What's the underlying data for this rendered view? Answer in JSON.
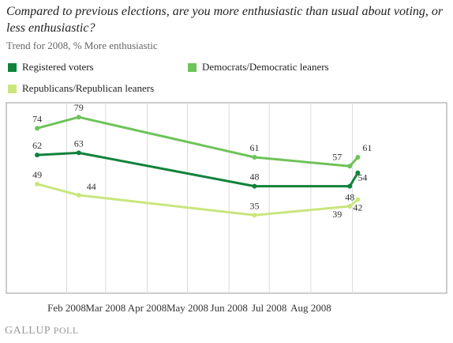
{
  "chart_data": {
    "type": "line",
    "title": "Compared to previous elections, are you more enthusiastic than usual about voting, or less enthusiastic?",
    "subtitle": "Trend for 2008, % More enthusiastic",
    "x_labels": [
      "Feb 2008",
      "Mar 2008",
      "Apr 2008",
      "May 2008",
      "Jun 2008",
      "Jul 2008",
      "Aug 2008"
    ],
    "x": [
      "2008-01-10",
      "2008-02-10",
      "2008-06-20",
      "2008-08-30",
      "2008-09-05"
    ],
    "ylim": [
      0,
      100
    ],
    "grid": true,
    "legend_position": "top",
    "series": [
      {
        "name": "Registered voters",
        "color": "#11823b",
        "values": [
          62,
          63,
          48,
          48,
          54
        ]
      },
      {
        "name": "Democrats/Democratic leaners",
        "color": "#6ec35a",
        "values": [
          74,
          79,
          61,
          57,
          61
        ]
      },
      {
        "name": "Republicans/Republican leaners",
        "color": "#c9e67d",
        "values": [
          49,
          44,
          35,
          39,
          42
        ]
      }
    ],
    "point_labels": {
      "Registered voters": [
        "62",
        "63",
        "48",
        "",
        "54"
      ],
      "Democrats/Democratic leaners": [
        "74",
        "79",
        "61",
        "57",
        "61"
      ],
      "Republicans/Republican leaners": [
        "49",
        "44",
        "35",
        "39",
        "42"
      ]
    },
    "extra_labels": [
      {
        "series": "Registered voters",
        "index": 3,
        "text": "48"
      }
    ]
  },
  "footer": {
    "brand": "GALLUP",
    "poll": "POLL"
  }
}
